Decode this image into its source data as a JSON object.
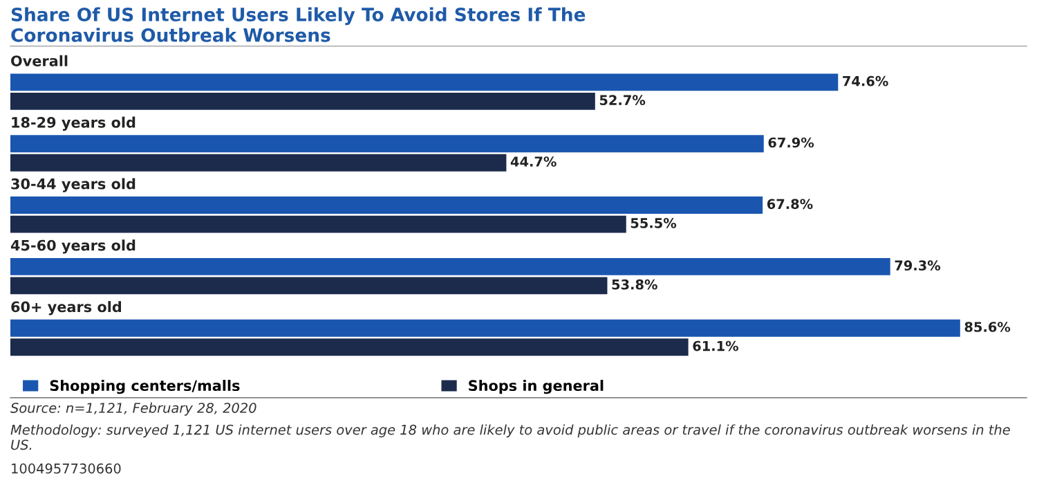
{
  "chart_data": {
    "type": "bar",
    "orientation": "horizontal",
    "title": "Share Of US Internet Users Likely To Avoid Stores If The\nCoronavirus Outbreak Worsens",
    "categories": [
      "Overall",
      "18-29 years old",
      "30-44 years old",
      "45-60 years old",
      "60+ years old"
    ],
    "series": [
      {
        "name": "Shopping centers/malls",
        "color": "#1a56b0",
        "values": [
          74.6,
          67.9,
          67.8,
          79.3,
          85.6
        ],
        "value_labels": [
          "74.6%",
          "67.9%",
          "67.8%",
          "79.3%",
          "85.6%"
        ]
      },
      {
        "name": "Shops in general",
        "color": "#1c2b4b",
        "values": [
          52.7,
          44.7,
          55.5,
          53.8,
          61.1
        ],
        "value_labels": [
          "52.7%",
          "44.7%",
          "55.5%",
          "53.8%",
          "61.1%"
        ]
      }
    ],
    "legend": "bottom",
    "annotations": [
      "Source: n=1,121, February 28, 2020",
      "Methodology: surveyed 1,121 US internet users over age 18 who are likely to avoid public areas or travel if the coronavirus outbreak worsens in the US.",
      "1004957730660"
    ]
  }
}
